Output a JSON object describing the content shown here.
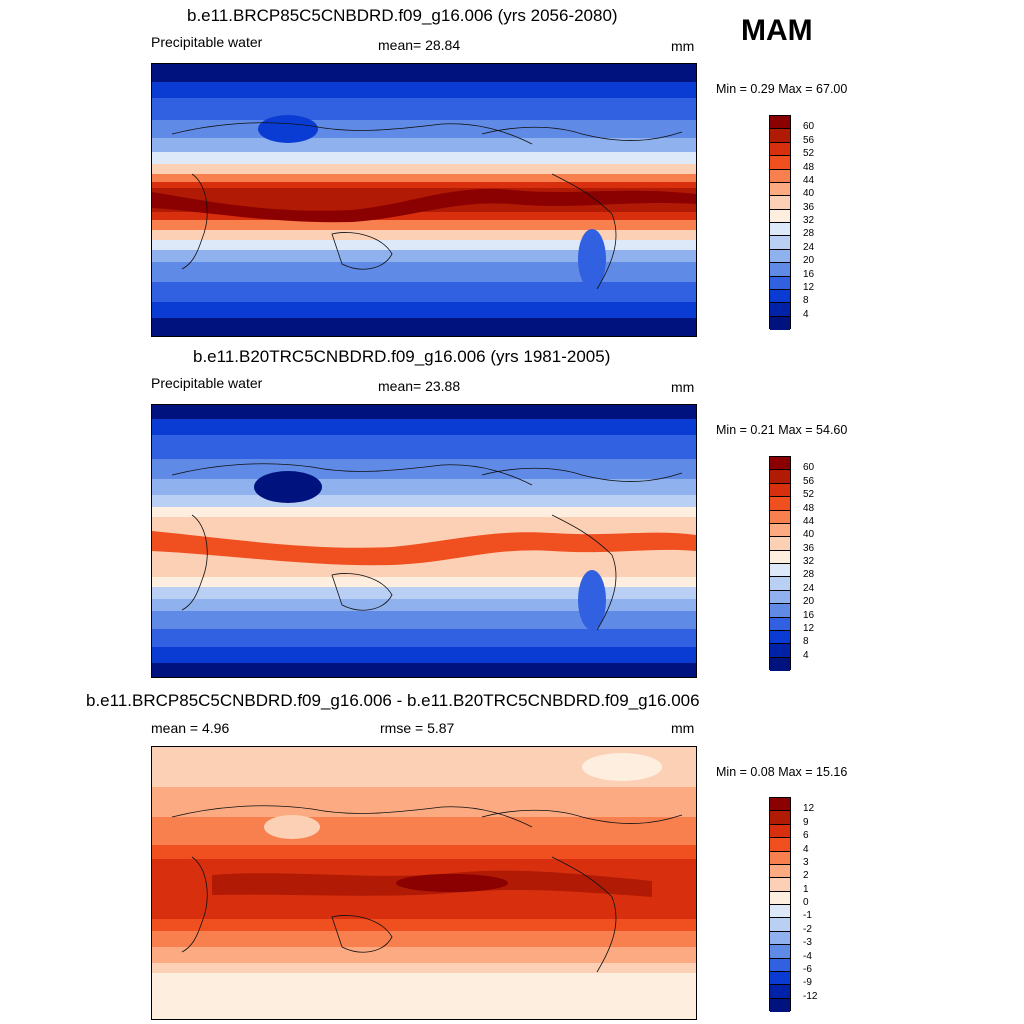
{
  "season": "MAM",
  "panels": [
    {
      "title": "b.e11.BRCP85C5CNBDRD.f09_g16.006 (yrs 2056-2080)",
      "left_label": "Precipitable water",
      "mid_label": "mean=  28.84",
      "units": "mm",
      "minmax": "Min =   0.29 Max =  67.00",
      "colorbar_labels": [
        "60",
        "56",
        "52",
        "48",
        "44",
        "40",
        "36",
        "32",
        "28",
        "24",
        "20",
        "16",
        "12",
        "8",
        "4"
      ],
      "colorbar_colors": [
        "#8b0000",
        "#b11a04",
        "#d8300e",
        "#f04f1f",
        "#f8804f",
        "#fbaa82",
        "#fcd0b5",
        "#fdeedf",
        "#dde8f8",
        "#b9cff4",
        "#8fb1ee",
        "#5f8ae6",
        "#3160e0",
        "#0a3cd4",
        "#0022a8",
        "#00127d"
      ]
    },
    {
      "title": "b.e11.B20TRC5CNBDRD.f09_g16.006 (yrs 1981-2005)",
      "left_label": "Precipitable water",
      "mid_label": "mean=  23.88",
      "units": "mm",
      "minmax": "Min =   0.21 Max =  54.60",
      "colorbar_labels": [
        "60",
        "56",
        "52",
        "48",
        "44",
        "40",
        "36",
        "32",
        "28",
        "24",
        "20",
        "16",
        "12",
        "8",
        "4"
      ],
      "colorbar_colors": [
        "#8b0000",
        "#b11a04",
        "#d8300e",
        "#f04f1f",
        "#f8804f",
        "#fbaa82",
        "#fcd0b5",
        "#fdeedf",
        "#dde8f8",
        "#b9cff4",
        "#8fb1ee",
        "#5f8ae6",
        "#3160e0",
        "#0a3cd4",
        "#0022a8",
        "#00127d"
      ]
    },
    {
      "title": "b.e11.BRCP85C5CNBDRD.f09_g16.006 - b.e11.B20TRC5CNBDRD.f09_g16.006",
      "left_label": "mean =   4.96",
      "mid_label": "rmse =   5.87",
      "units": "mm",
      "minmax": "Min =  0.08 Max =  15.16",
      "colorbar_labels": [
        "12",
        "9",
        "6",
        "4",
        "3",
        "2",
        "1",
        "0",
        "-1",
        "-2",
        "-3",
        "-4",
        "-6",
        "-9",
        "-12"
      ],
      "colorbar_colors": [
        "#8b0000",
        "#b11a04",
        "#d8300e",
        "#f04f1f",
        "#f8804f",
        "#fbaa82",
        "#fcd0b5",
        "#fdeedf",
        "#dde8f8",
        "#b9cff4",
        "#8fb1ee",
        "#5f8ae6",
        "#3160e0",
        "#0a3cd4",
        "#0022a8",
        "#00127d"
      ]
    }
  ],
  "colors": {
    "dark_blue": "#00127d",
    "mid_blue": "#3160e0",
    "dark_red": "#8b0000",
    "light_peach": "#fdeedf"
  }
}
